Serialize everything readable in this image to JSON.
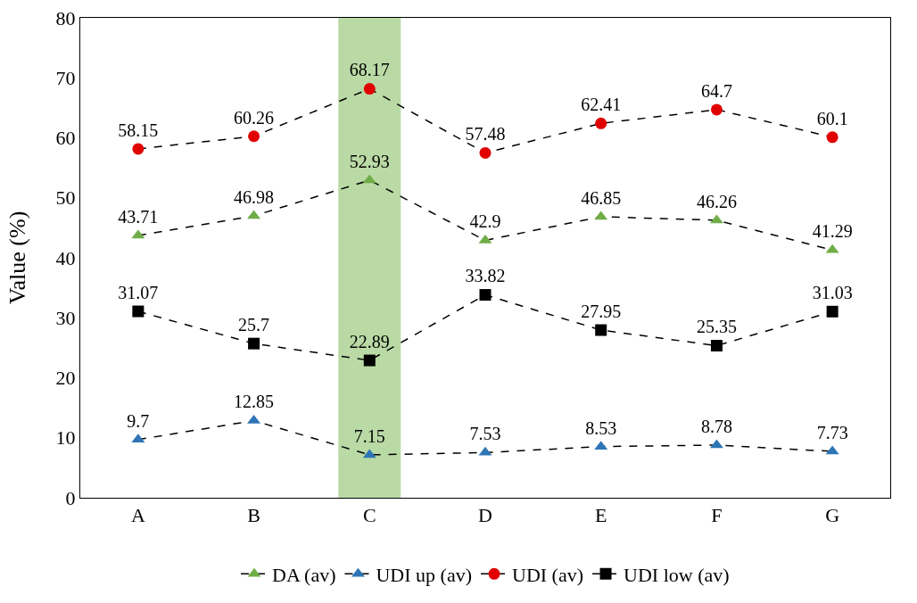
{
  "chart_data": {
    "type": "line",
    "ylabel": "Value (%)",
    "categories": [
      "A",
      "B",
      "C",
      "D",
      "E",
      "F",
      "G"
    ],
    "series": [
      {
        "name": "DA (av)",
        "color": "#70ad47",
        "marker": "triangle",
        "values": [
          43.71,
          46.98,
          52.93,
          42.9,
          46.85,
          46.26,
          41.29
        ]
      },
      {
        "name": "UDI up (av)",
        "color": "#2e75b6",
        "marker": "triangle",
        "values": [
          9.7,
          12.85,
          7.15,
          7.53,
          8.53,
          8.78,
          7.73
        ]
      },
      {
        "name": "UDI (av)",
        "color": "#e00000",
        "marker": "circle",
        "values": [
          58.15,
          60.26,
          68.17,
          57.48,
          62.41,
          64.7,
          60.1
        ]
      },
      {
        "name": "UDI low (av)",
        "color": "#000000",
        "marker": "square",
        "values": [
          31.07,
          25.7,
          22.89,
          33.82,
          27.95,
          25.35,
          31.03
        ]
      }
    ],
    "ylim": [
      0,
      80
    ],
    "yticks": [
      0,
      10,
      20,
      30,
      40,
      50,
      60,
      70,
      80
    ],
    "grid": false,
    "legend": "bottom",
    "line_style": "dashed",
    "data_labels": true,
    "bands": [
      {
        "axis": "x",
        "from": "C",
        "to": "C",
        "color": "#a9d18e"
      }
    ]
  }
}
